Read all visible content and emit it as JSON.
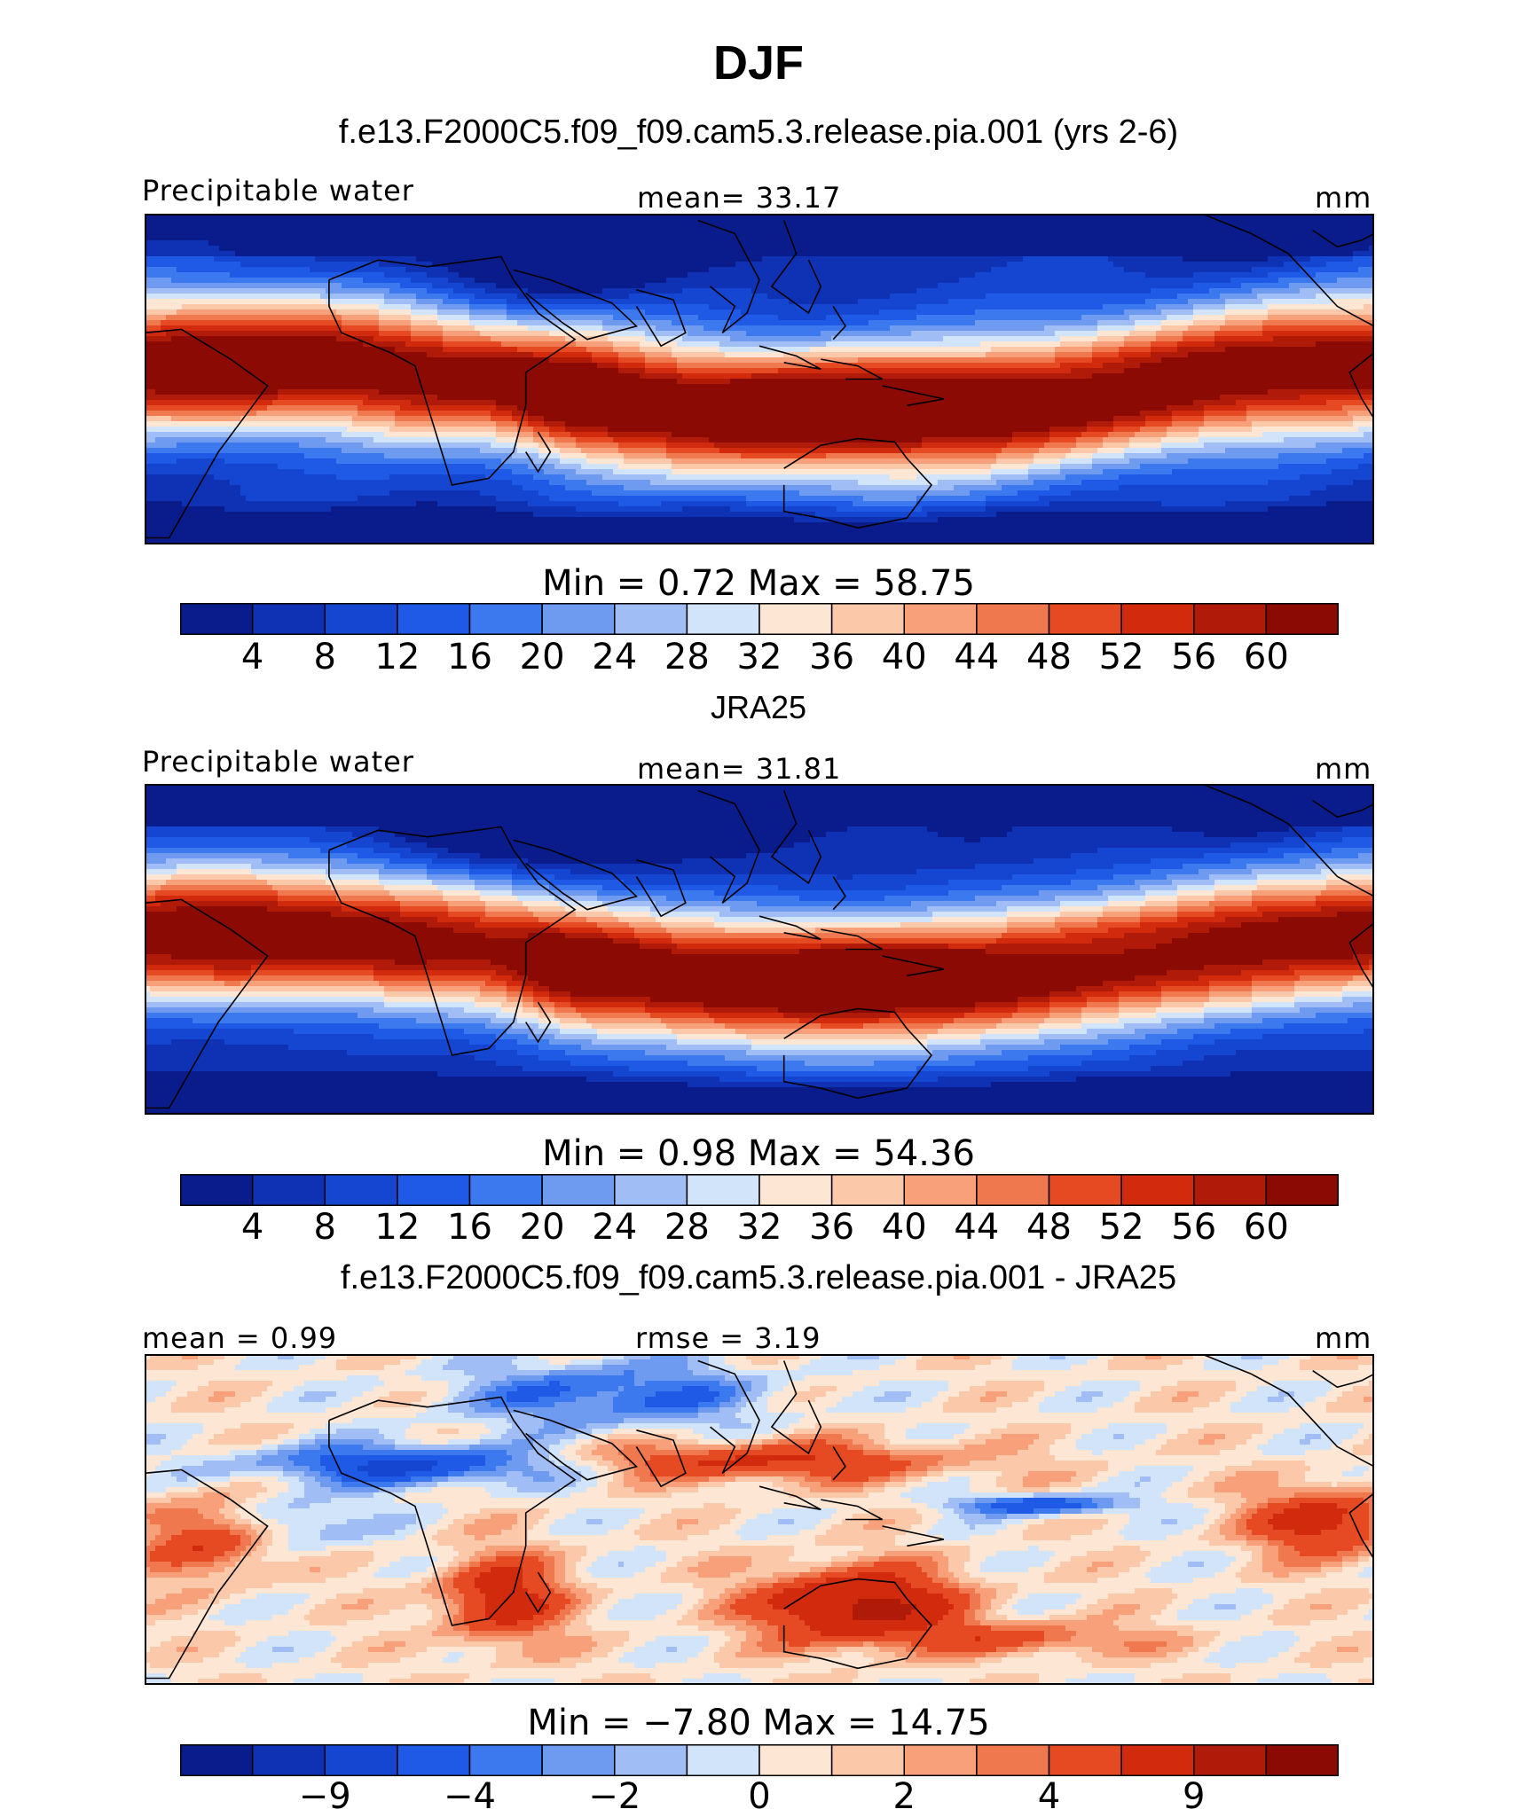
{
  "main_title": "DJF",
  "panels": [
    {
      "title": "f.e13.F2000C5.f09_f09.cam5.3.release.pia.001 (yrs 2-6)",
      "left_label": "Precipitable water",
      "center_label": "mean=   33.17",
      "right_label": "mm",
      "minmax": "Min  =    0.72  Max  =    58.75",
      "colorbar_ticks": [
        "4",
        "8",
        "12",
        "16",
        "20",
        "24",
        "28",
        "32",
        "36",
        "40",
        "44",
        "48",
        "52",
        "56",
        "60"
      ]
    },
    {
      "title": "JRA25",
      "left_label": "Precipitable water",
      "center_label": "mean=   31.81",
      "right_label": "mm",
      "minmax": "Min  =    0.98  Max  =    54.36",
      "colorbar_ticks": [
        "4",
        "8",
        "12",
        "16",
        "20",
        "24",
        "28",
        "32",
        "36",
        "40",
        "44",
        "48",
        "52",
        "56",
        "60"
      ]
    },
    {
      "title": "f.e13.F2000C5.f09_f09.cam5.3.release.pia.001 - JRA25",
      "left_label": "mean  =    0.99",
      "center_label": "rmse  =    3.19",
      "right_label": "mm",
      "minmax": "Min  =   −7.80  Max  =    14.75",
      "colorbar_ticks": [
        "−9",
        "−4",
        "−2",
        "0",
        "2",
        "4",
        "9"
      ]
    }
  ],
  "colors": {
    "scale": [
      "#0a1c8c",
      "#0f32b4",
      "#1446d2",
      "#1e5ae6",
      "#3c78ee",
      "#6e9af0",
      "#a0bef5",
      "#d2e4fa",
      "#fde6d4",
      "#fbc8aa",
      "#f7a07a",
      "#f0784e",
      "#e64a22",
      "#d22a0c",
      "#b01a08",
      "#8c0a04"
    ]
  }
}
